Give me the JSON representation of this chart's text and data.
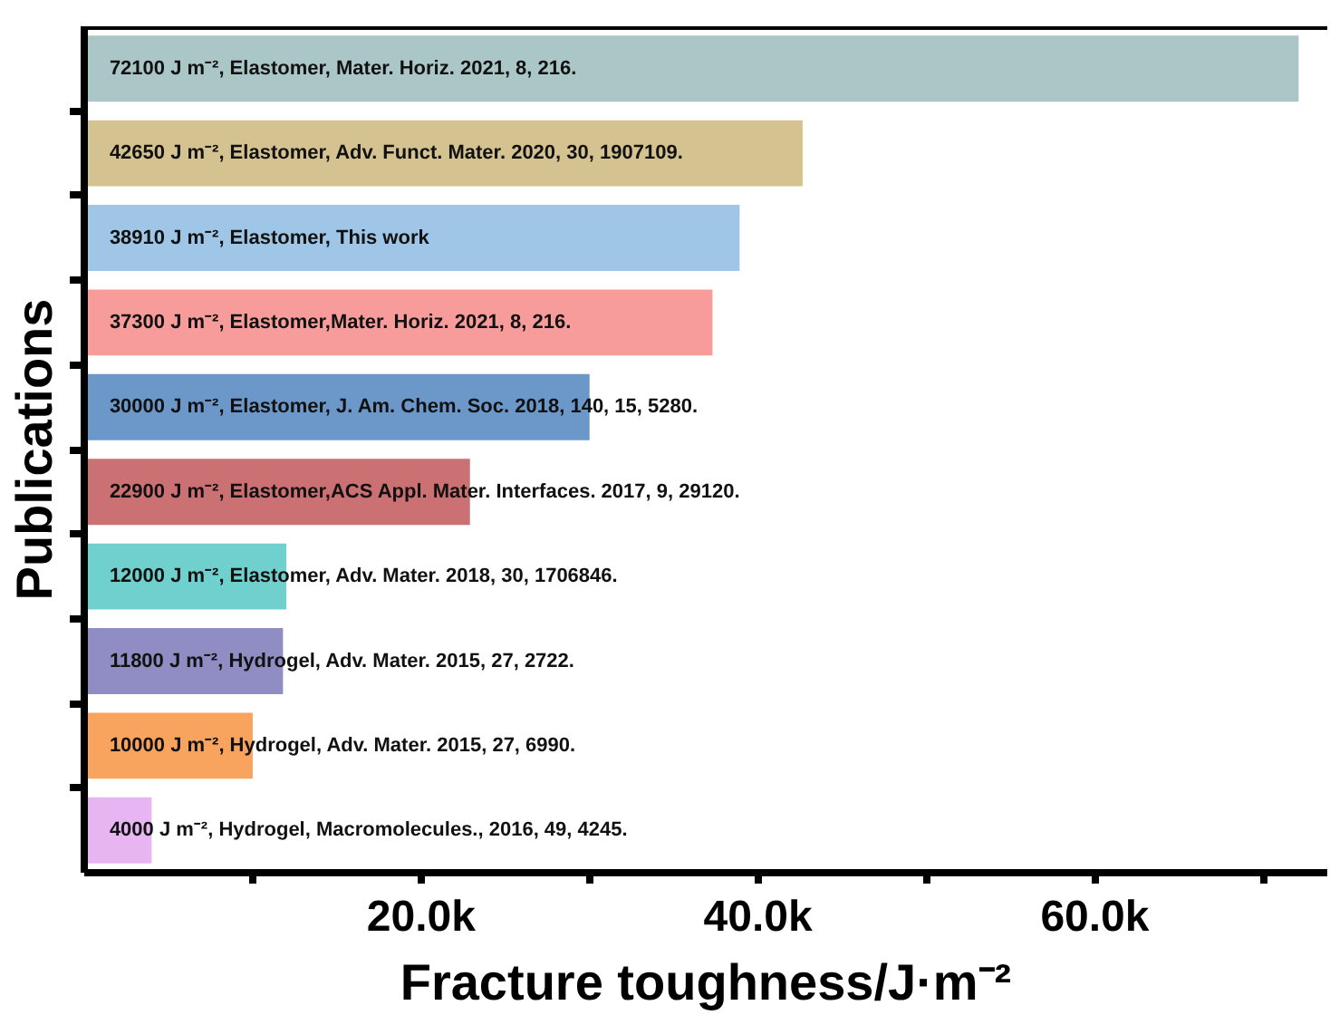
{
  "chart_data": {
    "type": "bar",
    "orientation": "horizontal",
    "xlabel": "Fracture toughness/J·m⁻²",
    "ylabel": "Publications",
    "categories": [
      null,
      null,
      null,
      null,
      null,
      null,
      null,
      null,
      null,
      null
    ],
    "values": [
      72100,
      42650,
      38910,
      37300,
      30000,
      22900,
      12000,
      11800,
      10000,
      4000
    ],
    "colors": [
      "#abc6c6",
      "#d5c291",
      "#9fc6e6",
      "#f79c9b",
      "#6c98c9",
      "#cc7173",
      "#70d0cd",
      "#908dc5",
      "#f8a35e",
      "#e8b5f3"
    ],
    "value_labels": [
      "72100 J m⁻², Elastomer, Mater. Horiz. 2021, 8, 216.",
      "42650 J m⁻², Elastomer, Adv. Funct. Mater. 2020, 30, 1907109.",
      "38910 J m⁻², Elastomer, This work",
      "37300 J m⁻², Elastomer,Mater. Horiz. 2021, 8, 216.",
      "30000 J m⁻², Elastomer, J. Am. Chem. Soc. 2018, 140, 15, 5280.",
      "22900 J m⁻², Elastomer,ACS Appl. Mater. Interfaces. 2017, 9, 29120.",
      "12000 J m⁻², Elastomer, Adv. Mater. 2018, 30, 1706846.",
      "11800 J m⁻², Hydrogel, Adv. Mater. 2015, 27, 2722.",
      "10000 J m⁻², Hydrogel, Adv. Mater. 2015, 27, 6990.",
      "4000 J m⁻², Hydrogel, Macromolecules., 2016, 49, 4245."
    ],
    "xlim": [
      0,
      73800
    ],
    "xticks": [
      {
        "value": 10000,
        "label": null
      },
      {
        "value": 20000,
        "label": "20.0k"
      },
      {
        "value": 30000,
        "label": null
      },
      {
        "value": 40000,
        "label": "40.0k"
      },
      {
        "value": 50000,
        "label": null
      },
      {
        "value": 60000,
        "label": "60.0k"
      },
      {
        "value": 70000,
        "label": null
      }
    ],
    "grid": false
  }
}
